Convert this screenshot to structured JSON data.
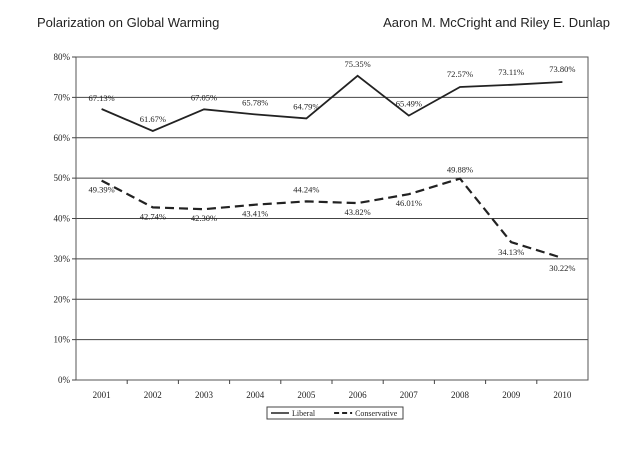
{
  "header": {
    "title": "Polarization on Global Warming",
    "authors": "Aaron M. McCright and Riley E. Dunlap"
  },
  "chart_data": {
    "type": "line",
    "x": [
      "2001",
      "2002",
      "2003",
      "2004",
      "2005",
      "2006",
      "2007",
      "2008",
      "2009",
      "2010"
    ],
    "y_ticks": [
      "0%",
      "10%",
      "20%",
      "30%",
      "40%",
      "50%",
      "60%",
      "70%",
      "80%"
    ],
    "ylim": [
      0,
      80
    ],
    "grid": true,
    "legend_position": "bottom-center",
    "series": [
      {
        "name": "Liberal",
        "style": "solid",
        "color": "#222222",
        "values": [
          67.13,
          61.67,
          67.05,
          65.78,
          64.79,
          75.35,
          65.49,
          72.57,
          73.11,
          73.8
        ],
        "labels": [
          "67.13%",
          "61.67%",
          "67.05%",
          "65.78%",
          "64.79%",
          "75.35%",
          "65.49%",
          "72.57%",
          "73.11%",
          "73.80%"
        ]
      },
      {
        "name": "Conservative",
        "style": "dashed",
        "color": "#222222",
        "values": [
          49.39,
          42.74,
          42.3,
          43.41,
          44.24,
          43.82,
          46.01,
          49.88,
          34.13,
          30.22
        ],
        "labels": [
          "49.39%",
          "42.74%",
          "42.30%",
          "43.41%",
          "44.24%",
          "43.82%",
          "46.01%",
          "49.88%",
          "34.13%",
          "30.22%"
        ]
      }
    ]
  }
}
